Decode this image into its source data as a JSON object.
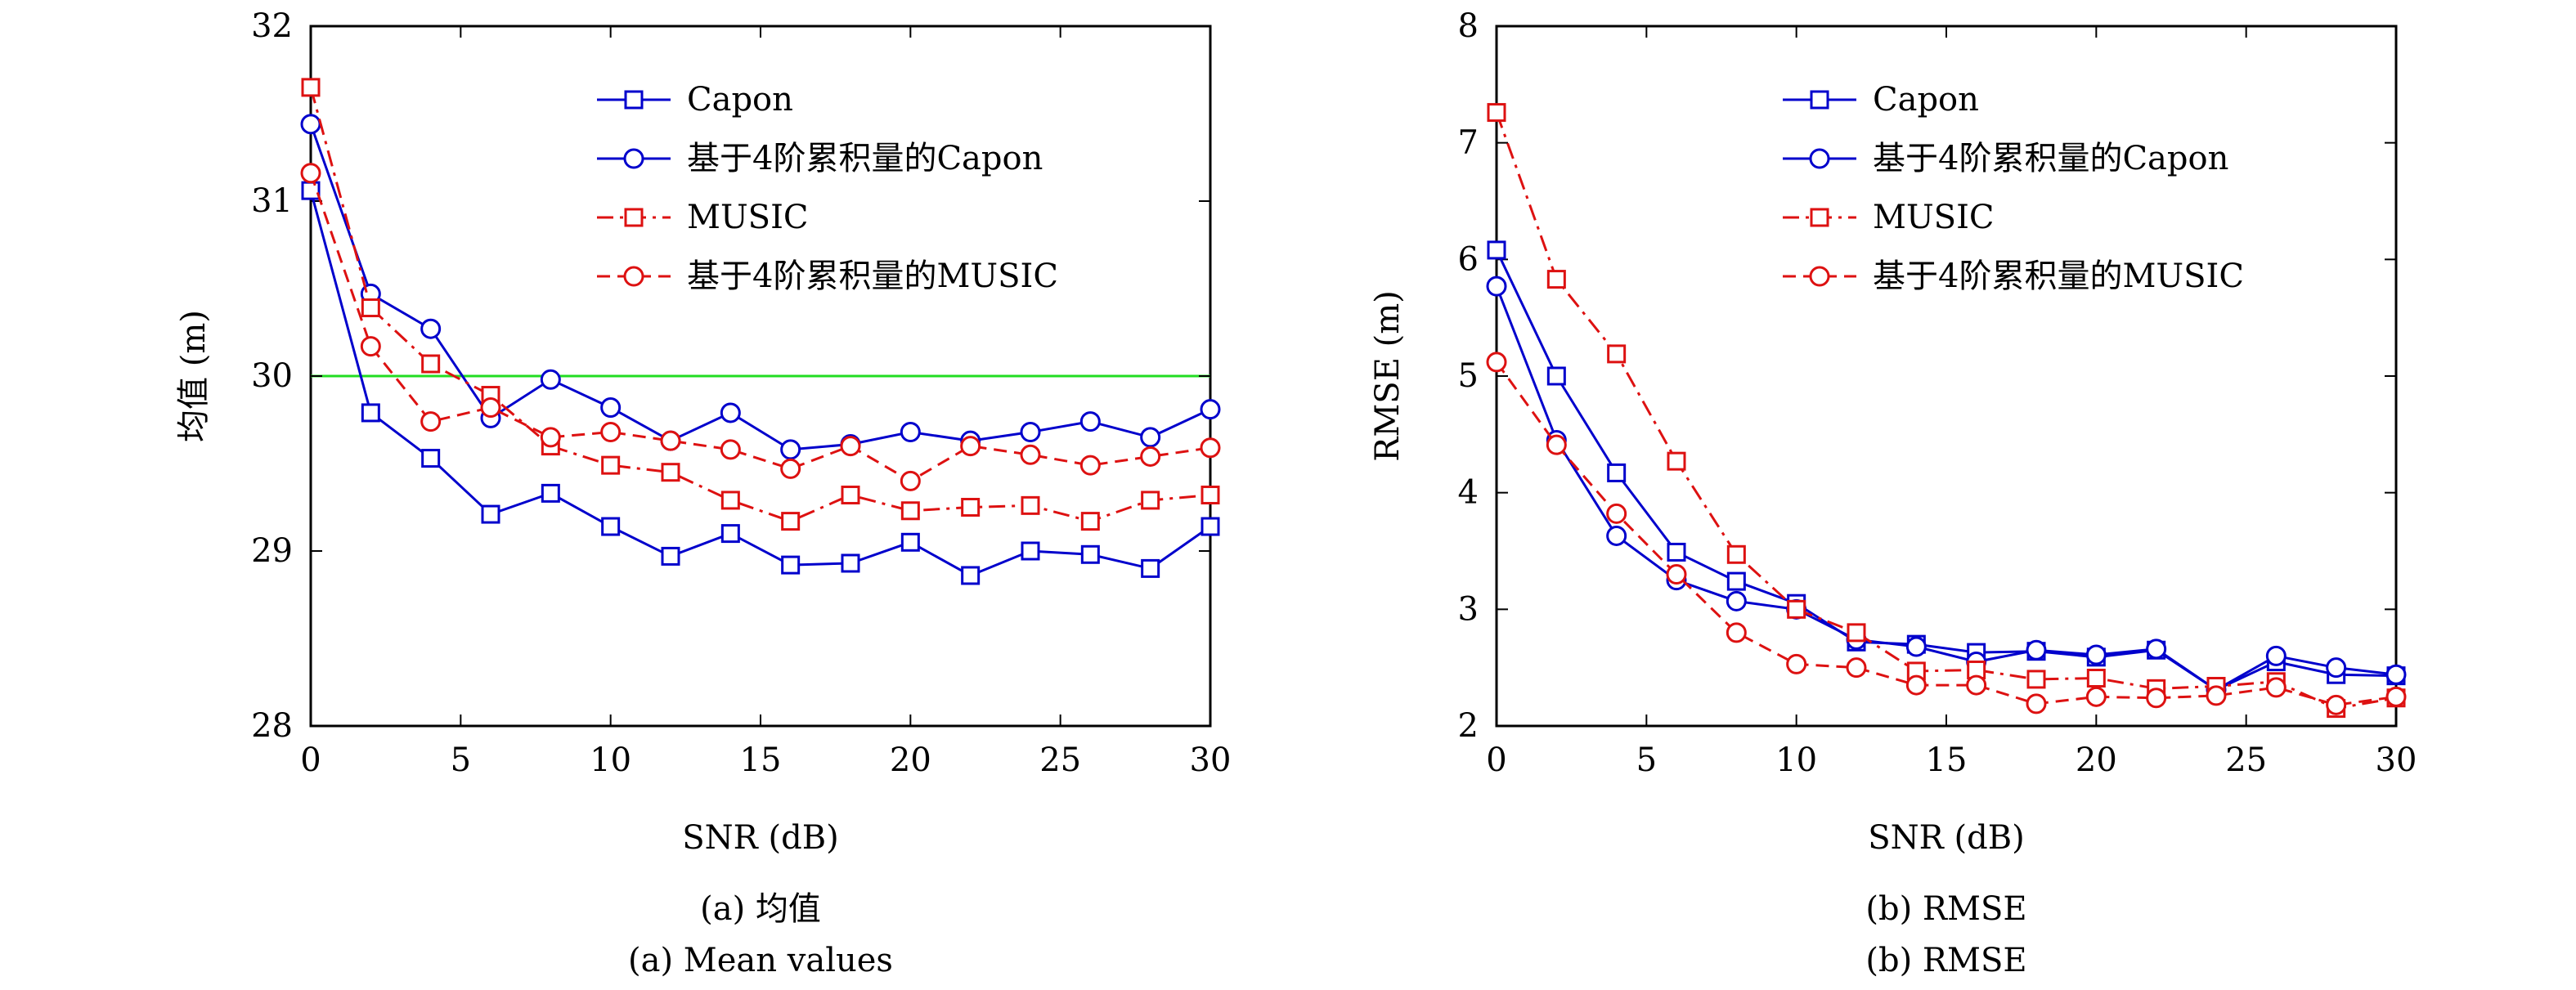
{
  "chart_data": [
    {
      "type": "line",
      "caption_zh": "(a) 均值",
      "caption_en": "(a) Mean values",
      "xlabel": "SNR (dB)",
      "ylabel": "均值 (m)",
      "xlim": [
        0,
        30
      ],
      "ylim": [
        28,
        32
      ],
      "xticks": [
        0,
        5,
        10,
        15,
        20,
        25,
        30
      ],
      "yticks": [
        28,
        29,
        30,
        31,
        32
      ],
      "grid": false,
      "legend_position": "top-right",
      "x": [
        0,
        2,
        4,
        6,
        8,
        10,
        12,
        14,
        16,
        18,
        20,
        22,
        24,
        26,
        28,
        30
      ],
      "reference_line": {
        "y": 30,
        "color": "#22dd22"
      },
      "series": [
        {
          "name": "Capon",
          "color": "#0000cc",
          "dash": "solid",
          "marker": "square",
          "values": [
            31.06,
            29.79,
            29.53,
            29.21,
            29.33,
            29.14,
            28.97,
            29.1,
            28.92,
            28.93,
            29.05,
            28.86,
            29.0,
            28.98,
            28.9,
            29.14
          ]
        },
        {
          "name": "基于4阶累积量的Capon",
          "color": "#0000cc",
          "dash": "solid",
          "marker": "circle",
          "values": [
            31.44,
            30.47,
            30.27,
            29.76,
            29.98,
            29.82,
            29.63,
            29.79,
            29.58,
            29.61,
            29.68,
            29.63,
            29.68,
            29.74,
            29.65,
            29.81
          ]
        },
        {
          "name": "MUSIC",
          "color": "#dd1111",
          "dash": "dashdot",
          "marker": "square",
          "values": [
            31.65,
            30.39,
            30.07,
            29.89,
            29.6,
            29.49,
            29.45,
            29.29,
            29.17,
            29.32,
            29.23,
            29.25,
            29.26,
            29.17,
            29.29,
            29.32
          ]
        },
        {
          "name": "基于4阶累积量的MUSIC",
          "color": "#dd1111",
          "dash": "dashed",
          "marker": "circle",
          "values": [
            31.16,
            30.17,
            29.74,
            29.82,
            29.65,
            29.68,
            29.63,
            29.58,
            29.47,
            29.6,
            29.4,
            29.6,
            29.55,
            29.49,
            29.54,
            29.59
          ]
        }
      ]
    },
    {
      "type": "line",
      "caption_zh": "(b) RMSE",
      "caption_en": "(b) RMSE",
      "xlabel": "SNR (dB)",
      "ylabel": "RMSE (m)",
      "xlim": [
        0,
        30
      ],
      "ylim": [
        2,
        8
      ],
      "xticks": [
        0,
        5,
        10,
        15,
        20,
        25,
        30
      ],
      "yticks": [
        2,
        3,
        4,
        5,
        6,
        7,
        8
      ],
      "grid": false,
      "legend_position": "top-right",
      "x": [
        0,
        2,
        4,
        6,
        8,
        10,
        12,
        14,
        16,
        18,
        20,
        22,
        24,
        26,
        28,
        30
      ],
      "series": [
        {
          "name": "Capon",
          "color": "#0000cc",
          "dash": "solid",
          "marker": "square",
          "values": [
            6.08,
            5.0,
            4.17,
            3.49,
            3.24,
            3.05,
            2.72,
            2.7,
            2.63,
            2.64,
            2.59,
            2.65,
            2.31,
            2.55,
            2.44,
            2.43
          ]
        },
        {
          "name": "基于4阶累积量的Capon",
          "color": "#0000cc",
          "dash": "solid",
          "marker": "circle",
          "values": [
            5.77,
            4.45,
            3.63,
            3.25,
            3.07,
            3.0,
            2.74,
            2.68,
            2.55,
            2.65,
            2.61,
            2.66,
            2.31,
            2.6,
            2.5,
            2.44
          ]
        },
        {
          "name": "MUSIC",
          "color": "#dd1111",
          "dash": "dashdot",
          "marker": "square",
          "values": [
            7.26,
            5.83,
            5.19,
            4.27,
            3.47,
            3.0,
            2.8,
            2.47,
            2.48,
            2.4,
            2.41,
            2.32,
            2.34,
            2.38,
            2.15,
            2.24
          ]
        },
        {
          "name": "基于4阶累积量的MUSIC",
          "color": "#dd1111",
          "dash": "dashed",
          "marker": "circle",
          "values": [
            5.12,
            4.41,
            3.82,
            3.3,
            2.8,
            2.53,
            2.5,
            2.35,
            2.35,
            2.19,
            2.25,
            2.24,
            2.26,
            2.33,
            2.18,
            2.25
          ]
        }
      ]
    }
  ]
}
